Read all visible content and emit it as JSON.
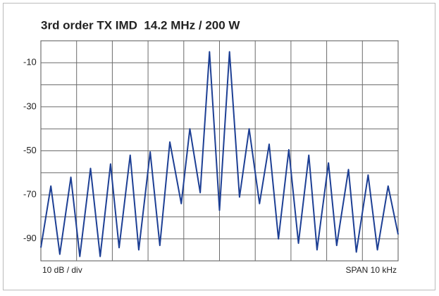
{
  "chart_data": {
    "type": "line",
    "title": "3rd order TX IMD  14.2 MHz / 200 W",
    "annotations": [
      "10 dB / div",
      "SPAN 10 kHz"
    ],
    "x": [
      -5,
      -4.72,
      -4.47,
      -4.16,
      -3.91,
      -3.61,
      -3.34,
      -3.05,
      -2.81,
      -2.5,
      -2.26,
      -1.94,
      -1.67,
      -1.39,
      -1.07,
      -0.83,
      -0.54,
      -0.28,
      0,
      0.28,
      0.56,
      0.83,
      1.12,
      1.39,
      1.65,
      1.94,
      2.21,
      2.5,
      2.73,
      3.05,
      3.28,
      3.61,
      3.83,
      4.16,
      4.42,
      4.72,
      5
    ],
    "series": [
      {
        "color": "#1d3f94",
        "values": [
          -94,
          -66,
          -97,
          -62,
          -98,
          -58,
          -98,
          -56,
          -94,
          -52,
          -95,
          -50.5,
          -93,
          -46,
          -74,
          -40,
          -69,
          -5,
          -77,
          -5,
          -71,
          -40,
          -74,
          -47,
          -90,
          -49.5,
          -92,
          -52,
          -95,
          -55.5,
          -93,
          -58.5,
          -96,
          -61,
          -95,
          -66,
          -88
        ]
      }
    ],
    "xlim": [
      -5,
      5
    ],
    "xgrid": [
      -4,
      -3,
      -2,
      -1,
      0,
      1,
      2,
      3,
      4
    ],
    "ylim": [
      -100,
      0
    ],
    "yticks": [
      -10,
      -30,
      -50,
      -70,
      -90
    ],
    "ygrid": [
      -20,
      -40,
      -60,
      -80
    ],
    "grid": true
  }
}
